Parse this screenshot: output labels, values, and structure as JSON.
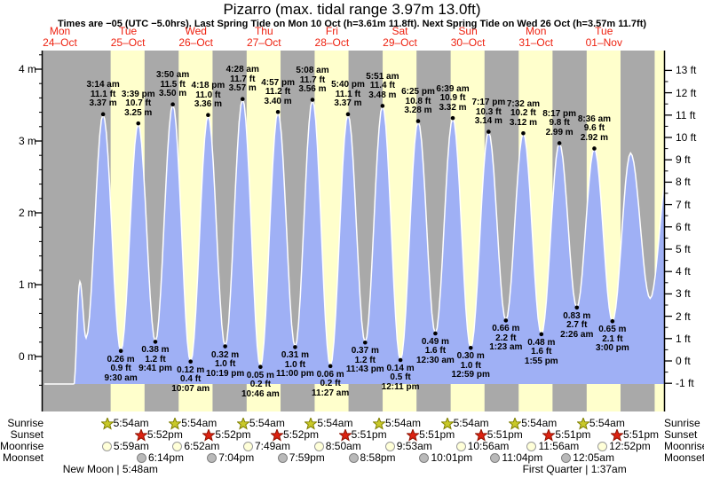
{
  "title": "Pizarro (max. tidal range 3.97m 13.0ft)",
  "subtitle": "Times are −05 (UTC −5.0hrs). Last Spring Tide on Mon 10 Oct (h=3.61m 11.8ft). Next Spring Tide on Wed 26 Oct (h=3.57m 11.7ft)",
  "days": [
    {
      "name": "Mon",
      "date": "24–Oct"
    },
    {
      "name": "Tue",
      "date": "25–Oct"
    },
    {
      "name": "Wed",
      "date": "26–Oct"
    },
    {
      "name": "Thu",
      "date": "27–Oct"
    },
    {
      "name": "Fri",
      "date": "28–Oct"
    },
    {
      "name": "Sat",
      "date": "29–Oct"
    },
    {
      "name": "Sun",
      "date": "30–Oct"
    },
    {
      "name": "Mon",
      "date": "31–Oct"
    },
    {
      "name": "Tue",
      "date": "01–Nov"
    }
  ],
  "axes": {
    "left_unit": "m",
    "left_ticks": [
      4,
      3,
      2,
      1,
      0
    ],
    "right_unit": "ft",
    "right_ticks": [
      13,
      12,
      11,
      10,
      9,
      8,
      7,
      6,
      5,
      4,
      3,
      2,
      1,
      0,
      -1
    ],
    "left_range_m": [
      0,
      4
    ],
    "right_range_ft": [
      -1,
      13
    ]
  },
  "chart_data": {
    "type": "area",
    "x_unit": "hours since Mon 24-Oct 00:00 (−05)",
    "y_unit": "m",
    "colors": {
      "night_band": "#a9a9a9",
      "day_band": "#ffffcc",
      "water": "#9fb0f5",
      "curve_line": "#ffffff",
      "annotation_text": "#000000",
      "day_label_text": "#ee2211",
      "dot": "#000000"
    },
    "tide_extremes": [
      {
        "t": 5.89,
        "h": -0.25,
        "kind": "edge"
      },
      {
        "t": 16.8,
        "h": -0.22,
        "kind": "edge"
      },
      {
        "t": 19.05,
        "h": 1.17,
        "kind": "edge"
      },
      {
        "t": 21.24,
        "h": 0.43,
        "kind": "edge"
      },
      {
        "t": 27.233,
        "h": 3.37,
        "kind": "high",
        "lines": [
          "3:14 am",
          "11.1 ft",
          "3.37 m"
        ]
      },
      {
        "t": 33.5,
        "h": 0.26,
        "kind": "low",
        "lines": [
          "0.26 m",
          "0.9 ft",
          "9:30 am"
        ]
      },
      {
        "t": 39.65,
        "h": 3.25,
        "kind": "high",
        "lines": [
          "3:39 pm",
          "10.7 ft",
          "3.25 m"
        ]
      },
      {
        "t": 45.683,
        "h": 0.38,
        "kind": "low",
        "lines": [
          "0.38 m",
          "1.2 ft",
          "9:41 pm"
        ]
      },
      {
        "t": 51.833,
        "h": 3.5,
        "kind": "high",
        "lines": [
          "3:50 am",
          "11.5 ft",
          "3.50 m"
        ]
      },
      {
        "t": 58.117,
        "h": 0.12,
        "kind": "low",
        "lines": [
          "0.12 m",
          "0.4 ft",
          "10:07 am"
        ]
      },
      {
        "t": 64.3,
        "h": 3.36,
        "kind": "high",
        "lines": [
          "4:18 pm",
          "11.0 ft",
          "3.36 m"
        ]
      },
      {
        "t": 70.317,
        "h": 0.32,
        "kind": "low",
        "lines": [
          "0.32 m",
          "1.0 ft",
          "10:19 pm"
        ]
      },
      {
        "t": 76.467,
        "h": 3.57,
        "kind": "high",
        "lines": [
          "4:28 am",
          "11.7 ft",
          "3.57 m"
        ]
      },
      {
        "t": 82.767,
        "h": 0.05,
        "kind": "low",
        "lines": [
          "0.05 m",
          "0.2 ft",
          "10:46 am"
        ]
      },
      {
        "t": 88.95,
        "h": 3.4,
        "kind": "high",
        "lines": [
          "4:57 pm",
          "11.2 ft",
          "3.40 m"
        ]
      },
      {
        "t": 95.0,
        "h": 0.31,
        "kind": "low",
        "lines": [
          "0.31 m",
          "1.0 ft",
          "11:00 pm"
        ]
      },
      {
        "t": 101.133,
        "h": 3.56,
        "kind": "high",
        "lines": [
          "5:08 am",
          "11.7 ft",
          "3.56 m"
        ]
      },
      {
        "t": 107.45,
        "h": 0.06,
        "kind": "low",
        "lines": [
          "0.06 m",
          "0.2 ft",
          "11:27 am"
        ]
      },
      {
        "t": 113.667,
        "h": 3.37,
        "kind": "high",
        "lines": [
          "5:40 pm",
          "11.1 ft",
          "3.37 m"
        ]
      },
      {
        "t": 119.717,
        "h": 0.37,
        "kind": "low",
        "lines": [
          "0.37 m",
          "1.2 ft",
          "11:43 pm"
        ]
      },
      {
        "t": 125.85,
        "h": 3.48,
        "kind": "high",
        "lines": [
          "5:51 am",
          "11.4 ft",
          "3.48 m"
        ]
      },
      {
        "t": 132.183,
        "h": 0.14,
        "kind": "low",
        "lines": [
          "0.14 m",
          "0.5 ft",
          "12:11 pm"
        ]
      },
      {
        "t": 138.417,
        "h": 3.28,
        "kind": "high",
        "lines": [
          "6:25 pm",
          "10.8 ft",
          "3.28 m"
        ]
      },
      {
        "t": 144.5,
        "h": 0.49,
        "kind": "low",
        "lines": [
          "0.49 m",
          "1.6 ft",
          "12:30 am"
        ]
      },
      {
        "t": 150.65,
        "h": 3.32,
        "kind": "high",
        "lines": [
          "6:39 am",
          "10.9 ft",
          "3.32 m"
        ]
      },
      {
        "t": 156.983,
        "h": 0.3,
        "kind": "low",
        "lines": [
          "0.30 m",
          "1.0 ft",
          "12:59 pm"
        ]
      },
      {
        "t": 163.283,
        "h": 3.14,
        "kind": "high",
        "lines": [
          "7:17 pm",
          "10.3 ft",
          "3.14 m"
        ]
      },
      {
        "t": 169.383,
        "h": 0.66,
        "kind": "low",
        "lines": [
          "0.66 m",
          "2.2 ft",
          "1:23 am"
        ]
      },
      {
        "t": 175.533,
        "h": 3.12,
        "kind": "high",
        "lines": [
          "7:32 am",
          "10.2 ft",
          "3.12 m"
        ]
      },
      {
        "t": 181.917,
        "h": 0.48,
        "kind": "low",
        "lines": [
          "0.48 m",
          "1.6 ft",
          "1:55 pm"
        ]
      },
      {
        "t": 188.283,
        "h": 2.99,
        "kind": "high",
        "lines": [
          "8:17 pm",
          "9.8 ft",
          "2.99 m"
        ]
      },
      {
        "t": 194.433,
        "h": 0.83,
        "kind": "low",
        "lines": [
          "0.83 m",
          "2.7 ft",
          "2:26 am"
        ]
      },
      {
        "t": 200.6,
        "h": 2.92,
        "kind": "high",
        "lines": [
          "8:36 am",
          "9.6 ft",
          "2.92 m"
        ]
      },
      {
        "t": 207.0,
        "h": 0.65,
        "kind": "low",
        "lines": [
          "0.65 m",
          "2.1 ft",
          "3:00 pm"
        ]
      },
      {
        "t": 213.4,
        "h": 2.86,
        "kind": "edge"
      },
      {
        "t": 220.3,
        "h": 0.95,
        "kind": "edge"
      },
      {
        "t": 227.0,
        "h": 2.75,
        "kind": "edge"
      }
    ]
  },
  "sun_moon": {
    "rows": [
      {
        "label": "Sunrise",
        "icon": "sunrise-star",
        "events": [
          {
            "t": 29.9,
            "time": "5:54am"
          },
          {
            "t": 53.9,
            "time": "5:54am"
          },
          {
            "t": 77.9,
            "time": "5:54am"
          },
          {
            "t": 101.9,
            "time": "5:54am"
          },
          {
            "t": 125.9,
            "time": "5:54am"
          },
          {
            "t": 149.9,
            "time": "5:54am"
          },
          {
            "t": 173.9,
            "time": "5:54am"
          },
          {
            "t": 197.9,
            "time": "5:54am"
          }
        ]
      },
      {
        "label": "Sunset",
        "icon": "sunset-star",
        "events": [
          {
            "t": 41.867,
            "time": "5:52pm"
          },
          {
            "t": 65.867,
            "time": "5:52pm"
          },
          {
            "t": 89.867,
            "time": "5:52pm"
          },
          {
            "t": 113.85,
            "time": "5:51pm"
          },
          {
            "t": 137.85,
            "time": "5:51pm"
          },
          {
            "t": 161.85,
            "time": "5:51pm"
          },
          {
            "t": 185.85,
            "time": "5:51pm"
          },
          {
            "t": 209.85,
            "time": "5:51pm"
          }
        ]
      },
      {
        "label": "Moonrise",
        "icon": "moonrise-circle",
        "events": [
          {
            "t": 29.983,
            "time": "5:59am"
          },
          {
            "t": 54.867,
            "time": "6:52am"
          },
          {
            "t": 79.817,
            "time": "7:49am"
          },
          {
            "t": 104.833,
            "time": "8:50am"
          },
          {
            "t": 129.883,
            "time": "9:53am"
          },
          {
            "t": 154.933,
            "time": "10:56am"
          },
          {
            "t": 179.933,
            "time": "11:56am"
          },
          {
            "t": 204.867,
            "time": "12:52pm"
          }
        ]
      },
      {
        "label": "Moonset",
        "icon": "moonset-circle",
        "events": [
          {
            "t": 42.233,
            "time": "6:14pm"
          },
          {
            "t": 67.067,
            "time": "7:04pm"
          },
          {
            "t": 91.983,
            "time": "7:59pm"
          },
          {
            "t": 116.967,
            "time": "8:58pm"
          },
          {
            "t": 142.017,
            "time": "10:01pm"
          },
          {
            "t": 167.067,
            "time": "11:04pm"
          },
          {
            "t": 192.083,
            "time": "12:05am"
          }
        ]
      }
    ],
    "phases": [
      {
        "t": 29.8,
        "text": "New Moon | 5:48am"
      },
      {
        "t": 193.617,
        "text": "First Quarter | 1:37am"
      }
    ]
  }
}
